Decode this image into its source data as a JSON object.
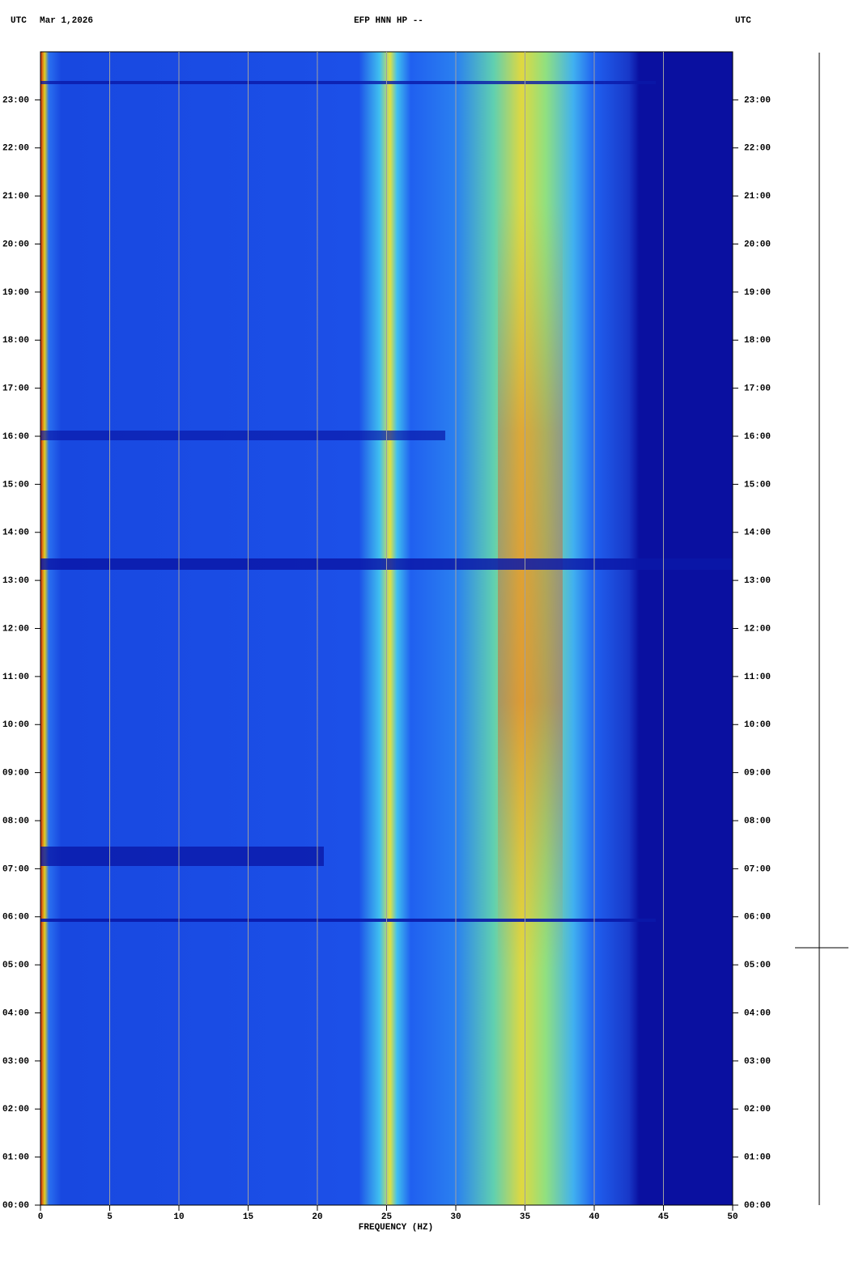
{
  "chart_data": {
    "type": "spectrogram",
    "header_left_zone": "UTC",
    "header_date": "Mar 1,2026",
    "title": "EFP HNN HP --",
    "header_right_zone": "UTC",
    "xlabel": "FREQUENCY (HZ)",
    "xlim": [
      0,
      50
    ],
    "xticks": [
      0,
      5,
      10,
      15,
      20,
      25,
      30,
      35,
      40,
      45,
      50
    ],
    "ylim": [
      0,
      24
    ],
    "yticks": [
      {
        "value": 0,
        "label": "00:00"
      },
      {
        "value": 1,
        "label": "01:00"
      },
      {
        "value": 2,
        "label": "02:00"
      },
      {
        "value": 3,
        "label": "03:00"
      },
      {
        "value": 4,
        "label": "04:00"
      },
      {
        "value": 5,
        "label": "05:00"
      },
      {
        "value": 6,
        "label": "06:00"
      },
      {
        "value": 7,
        "label": "07:00"
      },
      {
        "value": 8,
        "label": "08:00"
      },
      {
        "value": 9,
        "label": "09:00"
      },
      {
        "value": 10,
        "label": "10:00"
      },
      {
        "value": 11,
        "label": "11:00"
      },
      {
        "value": 12,
        "label": "12:00"
      },
      {
        "value": 13,
        "label": "13:00"
      },
      {
        "value": 14,
        "label": "14:00"
      },
      {
        "value": 15,
        "label": "15:00"
      },
      {
        "value": 16,
        "label": "16:00"
      },
      {
        "value": 17,
        "label": "17:00"
      },
      {
        "value": 18,
        "label": "18:00"
      },
      {
        "value": 19,
        "label": "19:00"
      },
      {
        "value": 20,
        "label": "20:00"
      },
      {
        "value": 21,
        "label": "21:00"
      },
      {
        "value": 22,
        "label": "22:00"
      },
      {
        "value": 23,
        "label": "23:00"
      }
    ],
    "grid": true,
    "grid_color": "#a0a0a0"
  }
}
